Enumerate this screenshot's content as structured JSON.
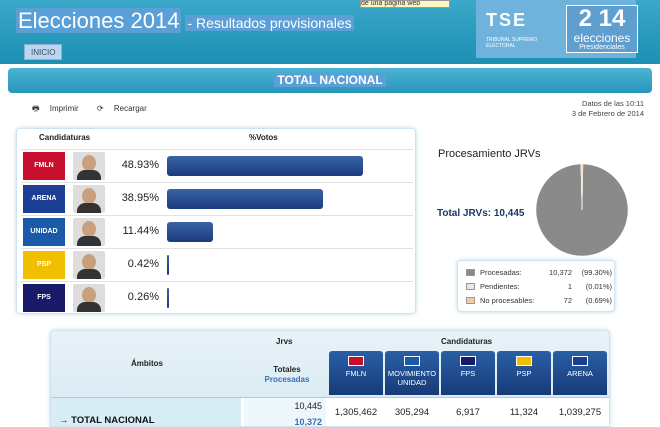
{
  "header": {
    "title": "Elecciones 2014",
    "subtitle": "- Resultados provisionales",
    "tooltip": "de una página web",
    "inicio": "INICIO",
    "tse_mark": "TSE",
    "tse_caption": "TRIBUNAL SUPREMO ELECTORAL",
    "logo_year": "2 14",
    "logo_elecciones": "elecciones",
    "logo_presidenciales": "Presidenciales"
  },
  "banner": {
    "title": "TOTAL NACIONAL"
  },
  "toolbar": {
    "print": "Imprimir",
    "reload": "Recargar"
  },
  "datetime": {
    "line1": "Datos de las 10:11",
    "line2": "3 de Febrero de 2014"
  },
  "candidates_table": {
    "col_candidaturas": "Candidaturas",
    "col_votos": "%Votos",
    "rows": [
      {
        "party": "FMLN",
        "pct": "48.93%",
        "value": 48.93,
        "color": "#c8102e"
      },
      {
        "party": "ARENA",
        "pct": "38.95%",
        "value": 38.95,
        "color": "#1c3f94"
      },
      {
        "party": "UNIDAD",
        "pct": "11.44%",
        "value": 11.44,
        "color": "#1a5aa8"
      },
      {
        "party": "PSP",
        "pct": "0.42%",
        "value": 0.42,
        "color": "#f0c000"
      },
      {
        "party": "FPS",
        "pct": "0.26%",
        "value": 0.26,
        "color": "#1a1a6a"
      }
    ]
  },
  "processing": {
    "title": "Procesamiento JRVs",
    "total_label": "Total JRVs: 10,445",
    "legend": [
      {
        "label": "Procesadas:",
        "count": "10,372",
        "percent": "(99.30%)",
        "color": "#8a8a8a",
        "value": 99.3
      },
      {
        "label": "Pendientes:",
        "count": "1",
        "percent": "(0.01%)",
        "color": "#e6e6e6",
        "value": 0.01
      },
      {
        "label": "No procesables:",
        "count": "72",
        "percent": "(0.69%)",
        "color": "#f5c9a0",
        "value": 0.69
      }
    ]
  },
  "results_table": {
    "ambitos": "Ámbitos",
    "jrvs": "Jrvs",
    "candidaturas": "Candidaturas",
    "totales": "Totales",
    "procesadas": "Procesadas",
    "parties": [
      {
        "name": "FMLN",
        "name2": "",
        "color": "#c8102e"
      },
      {
        "name": "MOVIMIENTO",
        "name2": "UNIDAD",
        "color": "#1a5aa8"
      },
      {
        "name": "FPS",
        "name2": "",
        "color": "#1a1a6a"
      },
      {
        "name": "PSP",
        "name2": "",
        "color": "#f0c000"
      },
      {
        "name": "ARENA",
        "name2": "",
        "color": "#1c3f94"
      }
    ],
    "row": {
      "name": "→ TOTAL NACIONAL",
      "jrv_total": "10,445",
      "jrv_proc": "10,372",
      "values": [
        "1,305,462",
        "305,294",
        "6,917",
        "11,324",
        "1,039,275"
      ]
    }
  }
}
